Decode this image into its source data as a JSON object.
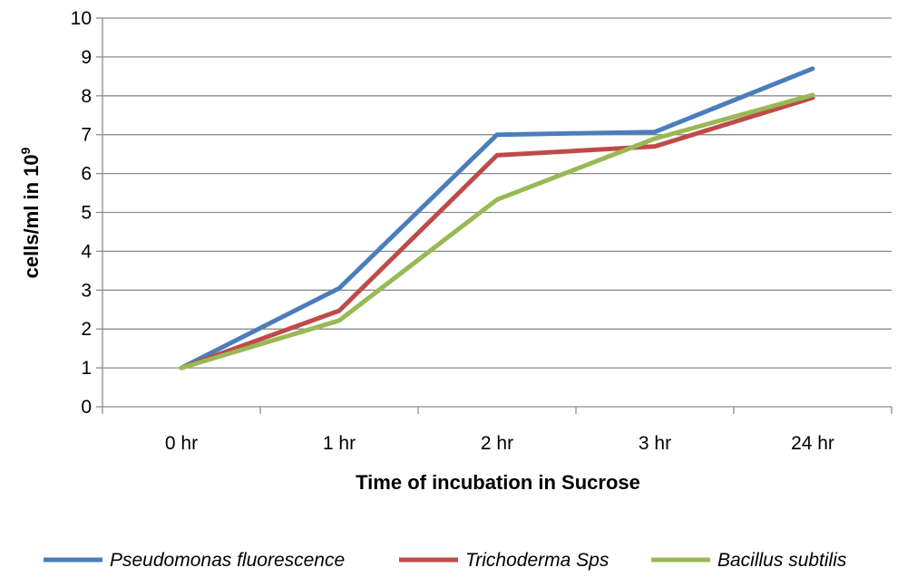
{
  "chart_data": {
    "type": "line",
    "categories": [
      "0 hr",
      "1 hr",
      "2 hr",
      "3 hr",
      "24 hr"
    ],
    "xlabel": "Time of incubation in Sucrose",
    "ylabel": "cells/ml in 10",
    "ylabel_superscript": "9",
    "ylim": [
      0,
      10
    ],
    "yticks": [
      0,
      1,
      2,
      3,
      4,
      5,
      6,
      7,
      8,
      9,
      10
    ],
    "grid": true,
    "legend_position": "bottom",
    "series": [
      {
        "name": "Pseudomonas fluorescence",
        "color": "#4a7ebb",
        "values": [
          1.0,
          3.05,
          7.0,
          7.07,
          8.7
        ]
      },
      {
        "name": "Trichoderma Sps",
        "color": "#be4b48",
        "values": [
          1.0,
          2.47,
          6.47,
          6.7,
          7.95
        ]
      },
      {
        "name": "Bacillus subtilis",
        "color": "#98b954",
        "values": [
          1.0,
          2.22,
          5.33,
          6.9,
          8.02
        ]
      }
    ]
  }
}
